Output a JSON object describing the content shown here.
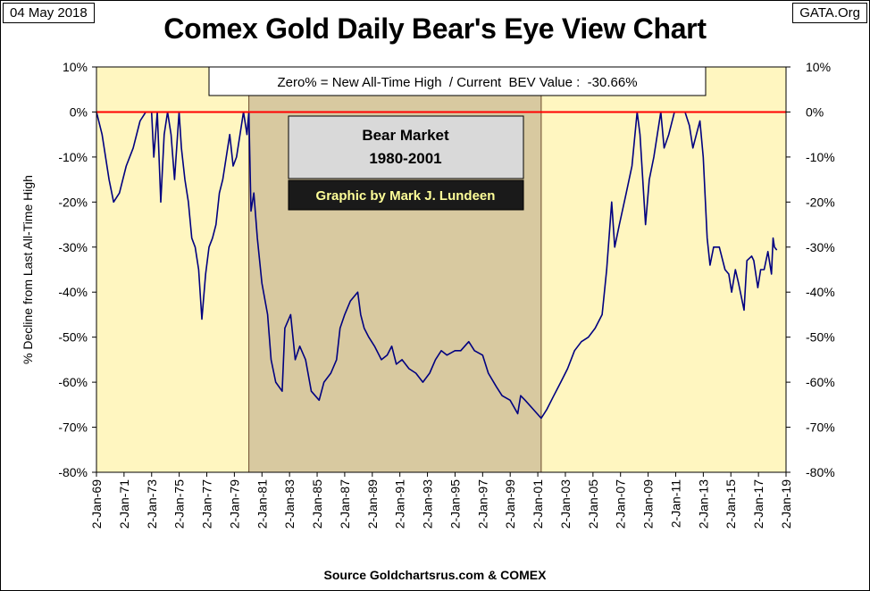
{
  "header": {
    "date": "04 May 2018",
    "site": "GATA.Org",
    "title": "Comex Gold Daily Bear's Eye View Chart"
  },
  "footer": {
    "source": "Source Goldchartsrus.com & COMEX"
  },
  "colors": {
    "plot_background": "#FFF6C0",
    "bear_shade": "#D8C9A0",
    "line": "#000080",
    "zero_line": "#FF0000",
    "bear_box": "#D9D9D9",
    "credit_box": "#1A1A1A",
    "credit_text": "#FFFF99"
  },
  "chart_data": {
    "type": "line",
    "title": "Comex Gold Daily Bear's Eye View Chart",
    "ylabel": "% Decline from Last All-Time High",
    "xlabel": "",
    "ylim": [
      -80,
      10
    ],
    "xlim": [
      "1969-01-02",
      "2019-01-02"
    ],
    "yticks": [
      "10%",
      "0%",
      "-10%",
      "-20%",
      "-30%",
      "-40%",
      "-50%",
      "-60%",
      "-70%",
      "-80%"
    ],
    "xticks": [
      "2-Jan-69",
      "2-Jan-71",
      "2-Jan-73",
      "2-Jan-75",
      "2-Jan-77",
      "2-Jan-79",
      "2-Jan-81",
      "2-Jan-83",
      "2-Jan-85",
      "2-Jan-87",
      "2-Jan-89",
      "2-Jan-91",
      "2-Jan-93",
      "2-Jan-95",
      "2-Jan-97",
      "2-Jan-99",
      "2-Jan-01",
      "2-Jan-03",
      "2-Jan-05",
      "2-Jan-07",
      "2-Jan-09",
      "2-Jan-11",
      "2-Jan-13",
      "2-Jan-15",
      "2-Jan-17",
      "2-Jan-19"
    ],
    "grid": false,
    "info_box": "Zero% = New All-Time High  / Current  BEV Value :  -30.66%",
    "bear_market": {
      "label_line1": "Bear Market",
      "label_line2": "1980-2001",
      "start": "1980-01-21",
      "end": "2001-04-02"
    },
    "credit": "Graphic by Mark J. Lundeen",
    "series": [
      {
        "x": [
          "1969-01-02",
          "1969-06-01",
          "1969-12-01",
          "1970-04-01",
          "1970-09-01",
          "1971-03-01",
          "1971-09-01",
          "1972-03-01",
          "1972-08-01",
          "1973-01-01",
          "1973-03-01",
          "1973-06-01",
          "1973-09-01",
          "1973-12-01",
          "1974-03-01",
          "1974-06-01",
          "1974-09-01",
          "1974-12-30",
          "1975-03-01",
          "1975-06-01",
          "1975-09-01",
          "1975-12-01",
          "1976-03-01",
          "1976-06-01",
          "1976-08-25",
          "1976-12-01",
          "1977-03-01",
          "1977-06-01",
          "1977-09-01",
          "1977-12-01",
          "1978-03-01",
          "1978-06-01",
          "1978-09-01",
          "1978-12-01",
          "1979-03-01",
          "1979-06-01",
          "1979-09-01",
          "1979-12-01",
          "1980-01-21",
          "1980-03-18",
          "1980-06-01",
          "1980-09-01",
          "1981-01-01",
          "1981-06-01",
          "1981-09-01",
          "1982-01-01",
          "1982-06-21",
          "1982-09-01",
          "1983-02-01",
          "1983-06-01",
          "1983-10-01",
          "1984-03-01",
          "1984-08-01",
          "1985-02-25",
          "1985-07-01",
          "1986-01-01",
          "1986-06-01",
          "1986-09-01",
          "1987-01-01",
          "1987-06-01",
          "1987-12-14",
          "1988-03-01",
          "1988-06-01",
          "1988-10-01",
          "1989-03-01",
          "1989-09-01",
          "1990-02-01",
          "1990-06-01",
          "1990-10-01",
          "1991-03-01",
          "1991-09-01",
          "1992-03-01",
          "1992-09-01",
          "1993-03-01",
          "1993-08-01",
          "1994-01-01",
          "1994-06-01",
          "1995-01-01",
          "1995-06-01",
          "1996-01-01",
          "1996-06-01",
          "1997-01-01",
          "1997-06-01",
          "1998-01-01",
          "1998-06-01",
          "1999-01-01",
          "1999-07-20",
          "1999-10-05",
          "2000-02-01",
          "2000-09-01",
          "2001-04-02",
          "2001-09-01",
          "2002-03-01",
          "2002-09-01",
          "2003-03-01",
          "2003-09-01",
          "2004-03-01",
          "2004-09-01",
          "2005-03-01",
          "2005-09-01",
          "2006-01-01",
          "2006-05-12",
          "2006-08-01",
          "2006-12-01",
          "2007-06-01",
          "2007-11-01",
          "2008-03-17",
          "2008-06-01",
          "2008-10-24",
          "2009-02-01",
          "2009-06-01",
          "2009-12-03",
          "2010-03-01",
          "2010-07-01",
          "2010-12-01",
          "2011-04-01",
          "2011-09-06",
          "2011-12-30",
          "2012-04-01",
          "2012-07-01",
          "2012-10-05",
          "2013-01-01",
          "2013-04-15",
          "2013-06-28",
          "2013-10-01",
          "2014-03-01",
          "2014-08-01",
          "2014-11-07",
          "2015-01-22",
          "2015-05-01",
          "2015-07-24",
          "2015-12-17",
          "2016-03-01",
          "2016-07-06",
          "2016-09-01",
          "2016-12-15",
          "2017-03-01",
          "2017-06-01",
          "2017-09-08",
          "2017-12-12",
          "2018-01-25",
          "2018-03-01",
          "2018-05-04"
        ],
        "y": [
          0,
          -5,
          -15,
          -20,
          -18,
          -12,
          -8,
          -2,
          0,
          0,
          -10,
          0,
          -20,
          -5,
          0,
          -5,
          -15,
          0,
          -8,
          -15,
          -20,
          -28,
          -30,
          -35,
          -46,
          -36,
          -30,
          -28,
          -25,
          -18,
          -15,
          -10,
          -5,
          -12,
          -10,
          -5,
          0,
          -5,
          0,
          -22,
          -18,
          -28,
          -38,
          -45,
          -55,
          -60,
          -62,
          -48,
          -45,
          -55,
          -52,
          -55,
          -62,
          -64,
          -60,
          -58,
          -55,
          -48,
          -45,
          -42,
          -40,
          -45,
          -48,
          -50,
          -52,
          -55,
          -54,
          -52,
          -56,
          -55,
          -57,
          -58,
          -60,
          -58,
          -55,
          -53,
          -54,
          -53,
          -53,
          -51,
          -53,
          -54,
          -58,
          -61,
          -63,
          -64,
          -67,
          -63,
          -64,
          -66,
          -68,
          -66,
          -63,
          -60,
          -57,
          -53,
          -51,
          -50,
          -48,
          -45,
          -35,
          -20,
          -30,
          -25,
          -18,
          -12,
          0,
          -5,
          -25,
          -15,
          -10,
          0,
          -8,
          -5,
          0,
          0,
          0,
          -3,
          -8,
          -5,
          -2,
          -10,
          -28,
          -34,
          -30,
          -30,
          -35,
          -36,
          -40,
          -35,
          -38,
          -44,
          -33,
          -32,
          -33,
          -39,
          -35,
          -35,
          -31,
          -36,
          -28,
          -30,
          -30.66
        ]
      }
    ]
  }
}
